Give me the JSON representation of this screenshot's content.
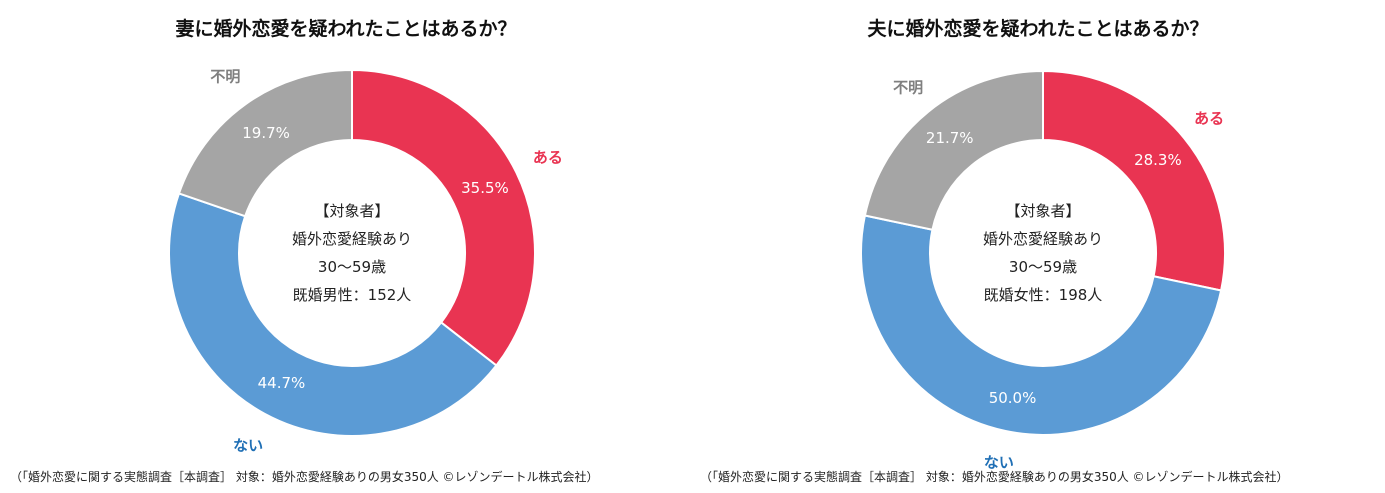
{
  "chart_data": [
    {
      "type": "pie",
      "variant": "donut",
      "title": "妻に婚外恋愛を疑われたことはあるか？",
      "categories": [
        "ある",
        "ない",
        "不明"
      ],
      "values": [
        35.5,
        44.7,
        19.7
      ],
      "value_labels": [
        "35.5%",
        "44.7%",
        "19.7%"
      ],
      "colors": [
        "#E93452",
        "#5B9BD5",
        "#A5A5A5"
      ],
      "category_colors": [
        "#E93452",
        "#1F6FB5",
        "#7F7F7F"
      ],
      "center_lines": [
        "【対象者】",
        "婚外恋愛経験あり",
        "30～59歳",
        "既婚男性：152人"
      ],
      "source": "（「婚外恋愛に関する実態調査［本調査］ 対象：婚外恋愛経験ありの男女350人 ©レゾンデートル株式会社）"
    },
    {
      "type": "pie",
      "variant": "donut",
      "title": "夫に婚外恋愛を疑われたことはあるか？",
      "categories": [
        "ある",
        "ない",
        "不明"
      ],
      "values": [
        28.3,
        50.0,
        21.7
      ],
      "value_labels": [
        "28.3%",
        "50.0%",
        "21.7%"
      ],
      "colors": [
        "#E93452",
        "#5B9BD5",
        "#A5A5A5"
      ],
      "category_colors": [
        "#E93452",
        "#1F6FB5",
        "#7F7F7F"
      ],
      "center_lines": [
        "【対象者】",
        "婚外恋愛経験あり",
        "30～59歳",
        "既婚女性：198人"
      ],
      "source": "（「婚外恋愛に関する実態調査［本調査］ 対象：婚外恋愛経験ありの男女350人 ©レゾンデートル株式会社）"
    }
  ]
}
